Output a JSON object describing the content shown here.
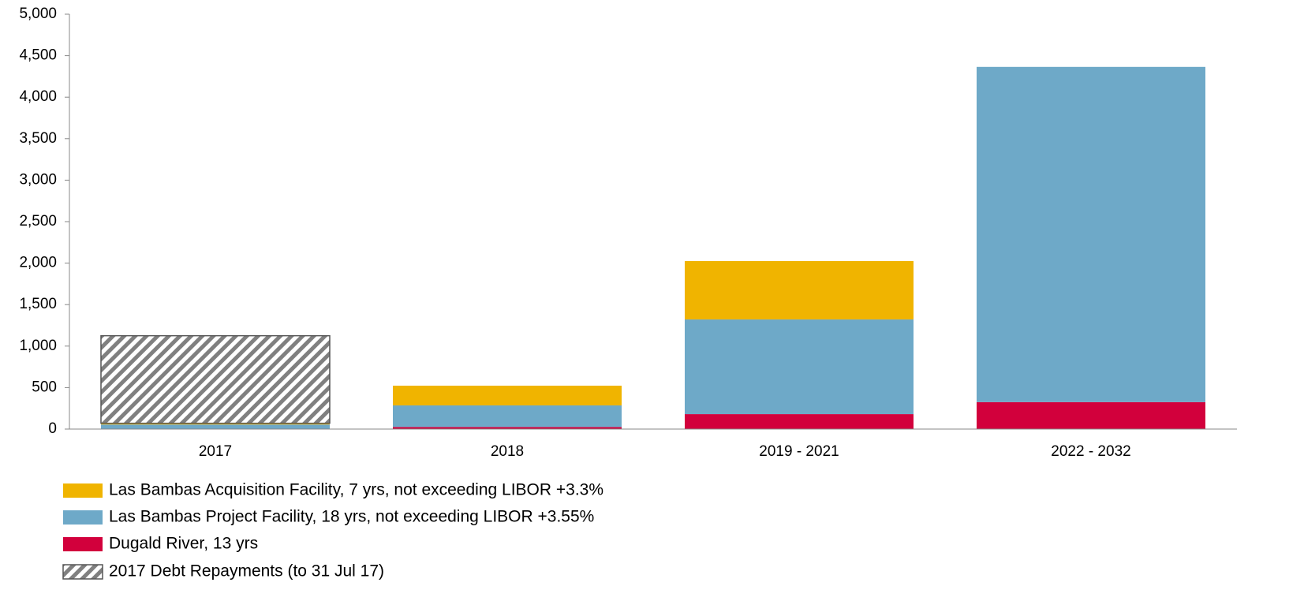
{
  "chart_data": {
    "type": "stacked_bar",
    "categories": [
      "2017",
      "2018",
      "2019 - 2021",
      "2022 - 2032"
    ],
    "series": [
      {
        "name": "Las Bambas Acquisition Facility, 7 yrs, not exceeding LIBOR +3.3%",
        "color": "#f0b400",
        "values": [
          15,
          238,
          704,
          0
        ]
      },
      {
        "name": "Las Bambas Project Facility, 18 yrs, not exceeding LIBOR +3.55%",
        "color": "#6ea9c8",
        "values": [
          55,
          260,
          1141,
          4040
        ]
      },
      {
        "name": "Dugald River, 13 yrs",
        "color": "#d2003c",
        "values": [
          0,
          25,
          180,
          325
        ]
      },
      {
        "name": "2017 Debt Repayments (to 31 Jul 17)",
        "color": "#808080",
        "pattern": "hatch",
        "values": [
          1055,
          null,
          null,
          null
        ]
      }
    ],
    "ylim": [
      0,
      5000
    ],
    "yticks": [
      0,
      {
        "value": 500,
        "label": "500"
      },
      {
        "value": 1000,
        "label": "1,000"
      },
      {
        "value": 1500,
        "label": "1,500"
      },
      {
        "value": 2000,
        "label": "2,000"
      },
      {
        "value": 2500,
        "label": "2,500"
      },
      {
        "value": 3000,
        "label": "3,000"
      },
      {
        "value": 3500,
        "label": "3,500"
      },
      {
        "value": 4000,
        "label": "4,000"
      },
      {
        "value": 4500,
        "label": "4,500"
      },
      {
        "value": 5000,
        "label": "5,000"
      }
    ]
  }
}
